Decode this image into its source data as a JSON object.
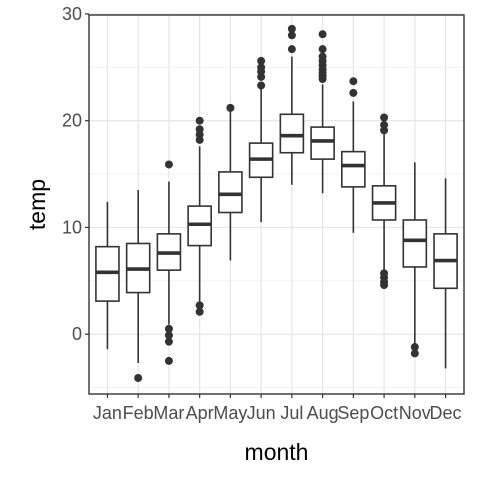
{
  "chart_data": {
    "type": "boxplot",
    "xlabel": "month",
    "ylabel": "temp",
    "ylim": [
      -5.6,
      29.9
    ],
    "yticks": [
      0,
      10,
      20,
      30
    ],
    "grid": true,
    "categories": [
      "Jan",
      "Feb",
      "Mar",
      "Apr",
      "May",
      "Jun",
      "Jul",
      "Aug",
      "Sep",
      "Oct",
      "Nov",
      "Dec"
    ],
    "boxes": [
      {
        "label": "Jan",
        "low": -1.4,
        "q1": 3.1,
        "median": 5.8,
        "q3": 8.2,
        "high": 12.4,
        "outliers": []
      },
      {
        "label": "Feb",
        "low": -2.7,
        "q1": 3.9,
        "median": 6.1,
        "q3": 8.5,
        "high": 13.5,
        "outliers": [
          -4.1
        ]
      },
      {
        "label": "Mar",
        "low": 0.9,
        "q1": 6.0,
        "median": 7.6,
        "q3": 9.4,
        "high": 14.3,
        "outliers": [
          15.9,
          0.5,
          -0.1,
          -0.7,
          -2.5
        ]
      },
      {
        "label": "Apr",
        "low": 3.0,
        "q1": 8.3,
        "median": 10.3,
        "q3": 12.0,
        "high": 17.6,
        "outliers": [
          20.0,
          19.2,
          18.7,
          18.2,
          2.7,
          2.1
        ]
      },
      {
        "label": "May",
        "low": 6.9,
        "q1": 11.4,
        "median": 13.1,
        "q3": 15.2,
        "high": 21.2,
        "outliers": [
          21.2
        ]
      },
      {
        "label": "Jun",
        "low": 10.5,
        "q1": 14.7,
        "median": 16.4,
        "q3": 17.9,
        "high": 23.3,
        "outliers": [
          25.6,
          25.0,
          24.6,
          24.1,
          23.3
        ]
      },
      {
        "label": "Jul",
        "low": 14.0,
        "q1": 17.0,
        "median": 18.6,
        "q3": 20.6,
        "high": 26.0,
        "outliers": [
          28.6,
          28.0,
          26.7
        ]
      },
      {
        "label": "Aug",
        "low": 13.2,
        "q1": 16.4,
        "median": 18.1,
        "q3": 19.4,
        "high": 23.4,
        "outliers": [
          28.1,
          26.7,
          26.0,
          25.6,
          25.2,
          24.8,
          24.5,
          24.2,
          23.9
        ]
      },
      {
        "label": "Sep",
        "low": 9.5,
        "q1": 13.8,
        "median": 15.8,
        "q3": 17.1,
        "high": 21.8,
        "outliers": [
          23.7,
          22.6
        ]
      },
      {
        "label": "Oct",
        "low": 6.0,
        "q1": 10.7,
        "median": 12.3,
        "q3": 13.9,
        "high": 18.9,
        "outliers": [
          20.3,
          19.6,
          19.1,
          5.7,
          5.3,
          4.9,
          4.6
        ]
      },
      {
        "label": "Nov",
        "low": -0.9,
        "q1": 6.3,
        "median": 8.8,
        "q3": 10.7,
        "high": 16.1,
        "outliers": [
          -1.2,
          -1.8
        ]
      },
      {
        "label": "Dec",
        "low": -3.2,
        "q1": 4.3,
        "median": 6.9,
        "q3": 9.4,
        "high": 14.6,
        "outliers": []
      }
    ]
  }
}
